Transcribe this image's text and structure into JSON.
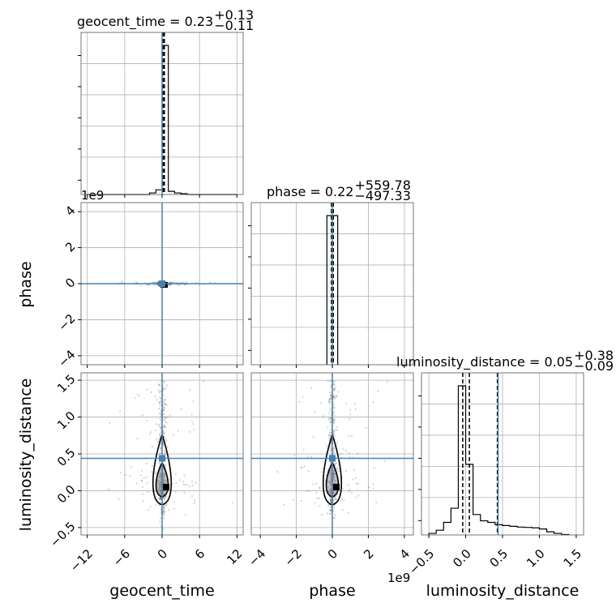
{
  "chart_data": {
    "type": "corner",
    "parameters": [
      "geocent_time",
      "phase",
      "luminosity_distance"
    ],
    "titles": [
      {
        "param": "geocent_time",
        "text": "geocent_time = 0.23",
        "plus": "+0.13",
        "minus": "−0.11"
      },
      {
        "param": "phase",
        "text": "phase = 0.22",
        "plus": "+559.78",
        "minus": "−497.33"
      },
      {
        "param": "luminosity_distance",
        "text": "luminosity_distance = 0.05",
        "plus": "+0.38",
        "minus": "−0.09"
      }
    ],
    "axis_labels": {
      "x": [
        "geocent_time",
        "phase",
        "luminosity_distance"
      ],
      "y": [
        "phase",
        "luminosity_distance"
      ]
    },
    "offset_labels": {
      "phase_y": "1e9",
      "phase_x": "1e9"
    },
    "ranges": {
      "geocent_time": [
        -13,
        13
      ],
      "phase": [
        -4.5,
        4.5
      ],
      "luminosity_distance": [
        -0.6,
        1.6
      ]
    },
    "ticks": {
      "geocent_time": {
        "values": [
          -12,
          -6,
          0,
          6,
          12
        ],
        "labels": [
          "−12",
          "−6",
          "0",
          "6",
          "12"
        ]
      },
      "phase": {
        "values": [
          -4,
          -2,
          0,
          2,
          4
        ],
        "labels": [
          "−4",
          "−2",
          "0",
          "2",
          "4"
        ]
      },
      "luminosity_distance": {
        "values": [
          -0.5,
          0.0,
          0.5,
          1.0,
          1.5
        ],
        "labels": [
          "−0.5",
          "0.0",
          "0.5",
          "1.0",
          "1.5"
        ]
      }
    },
    "truths": {
      "geocent_time": 0.0,
      "phase": 0.0,
      "luminosity_distance": 0.44
    },
    "quantiles": {
      "geocent_time": [
        0.12,
        0.23,
        0.36
      ],
      "phase": [
        -0.0497,
        0.0,
        0.056
      ],
      "luminosity_distance": [
        -0.04,
        0.05,
        0.43
      ]
    },
    "hist_1d": {
      "geocent_time": {
        "edges": [
          -12,
          -11,
          -10,
          -9,
          -8,
          -7,
          -6,
          -5,
          -4,
          -3,
          -2,
          -1,
          0,
          1,
          2,
          3,
          4,
          5,
          6,
          7,
          8,
          9,
          10,
          11,
          12
        ],
        "counts": [
          0,
          0,
          0,
          0,
          0,
          0,
          0,
          0,
          0,
          0,
          0.01,
          0.03,
          0.95,
          0.02,
          0.01,
          0.005,
          0,
          0,
          0,
          0,
          0,
          0,
          0,
          0
        ]
      },
      "phase": {
        "edges": [
          -0.3,
          0.3
        ],
        "counts": [
          1.0
        ]
      },
      "luminosity_distance": {
        "edges": [
          -0.5,
          -0.4,
          -0.3,
          -0.2,
          -0.1,
          0.0,
          0.1,
          0.2,
          0.3,
          0.4,
          0.5,
          0.6,
          0.7,
          0.8,
          0.9,
          1.0,
          1.1,
          1.2,
          1.3,
          1.4
        ],
        "counts": [
          0.01,
          0.03,
          0.08,
          0.17,
          0.95,
          0.45,
          0.13,
          0.09,
          0.08,
          0.065,
          0.06,
          0.055,
          0.05,
          0.048,
          0.045,
          0.038,
          0.02,
          0.01,
          0.003
        ]
      }
    },
    "colors": {
      "truth": "#4682b4",
      "hist": "#000000",
      "scatter": "#555555"
    }
  }
}
